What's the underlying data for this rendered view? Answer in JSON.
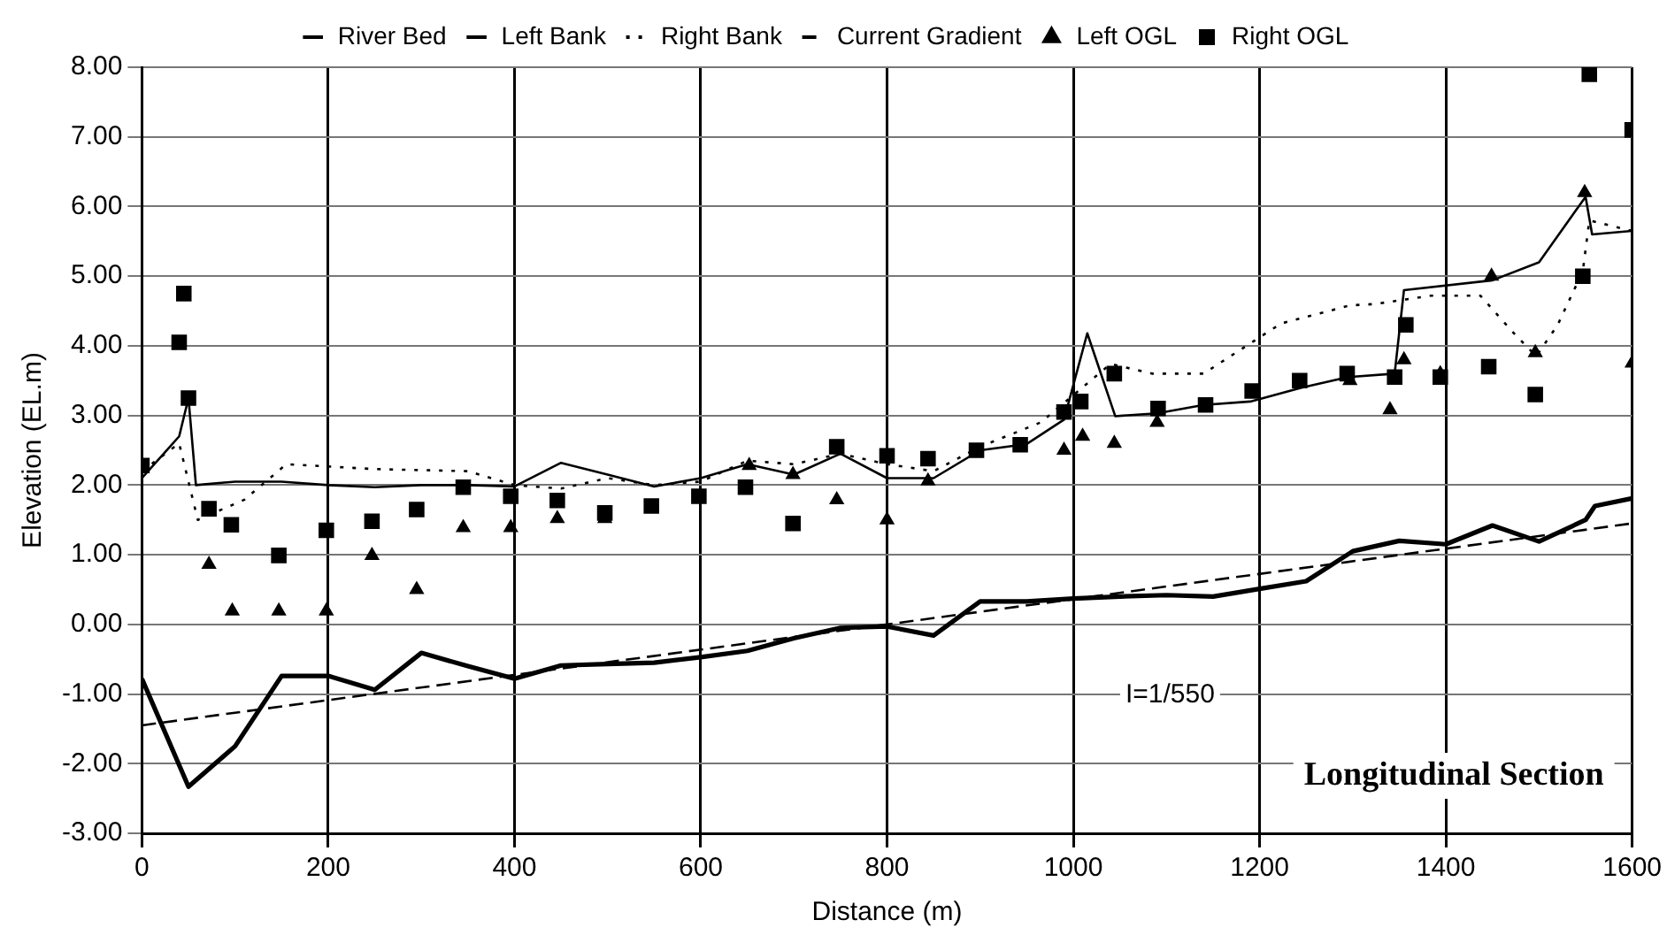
{
  "chart_data": {
    "type": "line",
    "title": "Longitudinal Section",
    "xlabel": "Distance (m)",
    "ylabel": "Elevation (EL.m)",
    "xlim": [
      0,
      1600
    ],
    "xticks": [
      0,
      200,
      400,
      600,
      800,
      1000,
      1200,
      1400,
      1600
    ],
    "ylim": [
      -3,
      8
    ],
    "yticks": [
      {
        "value": -3,
        "label": "-3.00"
      },
      {
        "value": -2,
        "label": "-2.00"
      },
      {
        "value": -1,
        "label": "-1.00"
      },
      {
        "value": 0,
        "label": "0.00"
      },
      {
        "value": 1,
        "label": "1.00"
      },
      {
        "value": 2,
        "label": "2.00"
      },
      {
        "value": 3,
        "label": "3.00"
      },
      {
        "value": 4,
        "label": "4.00"
      },
      {
        "value": 5,
        "label": "5.00"
      },
      {
        "value": 6,
        "label": "6.00"
      },
      {
        "value": 7,
        "label": "7.00"
      },
      {
        "value": 8,
        "label": "8.00"
      }
    ],
    "grid": true,
    "legend": "top",
    "annotations": [
      "I=1/550"
    ],
    "series": [
      {
        "name": "River Bed",
        "type": "line",
        "color": "#000000",
        "line_style": "solid",
        "marker": "none",
        "x": [
          0,
          50,
          100,
          150,
          200,
          250,
          300,
          350,
          400,
          450,
          500,
          550,
          600,
          650,
          700,
          750,
          800,
          850,
          900,
          950,
          1000,
          1050,
          1100,
          1150,
          1200,
          1250,
          1300,
          1350,
          1400,
          1450,
          1500,
          1550,
          1560,
          1600
        ],
        "values": [
          -0.78,
          -2.33,
          -1.75,
          -0.74,
          -0.74,
          -0.94,
          -0.41,
          -0.6,
          -0.78,
          -0.59,
          -0.57,
          -0.55,
          -0.47,
          -0.38,
          -0.2,
          -0.05,
          -0.03,
          -0.16,
          0.33,
          0.33,
          0.37,
          0.4,
          0.42,
          0.4,
          0.51,
          0.62,
          1.05,
          1.2,
          1.15,
          1.42,
          1.19,
          1.5,
          1.7,
          1.81
        ]
      },
      {
        "name": "Left Bank",
        "type": "line",
        "color": "#000000",
        "line_style": "solid",
        "marker": "none",
        "x": [
          0,
          40,
          50,
          58,
          100,
          150,
          200,
          250,
          300,
          350,
          400,
          450,
          500,
          550,
          600,
          650,
          700,
          750,
          800,
          850,
          900,
          950,
          990,
          1015,
          1045,
          1090,
          1140,
          1190,
          1245,
          1295,
          1345,
          1355,
          1450,
          1500,
          1550,
          1557,
          1600
        ],
        "values": [
          2.1,
          2.7,
          3.25,
          2.0,
          2.05,
          2.05,
          2.0,
          1.97,
          2.0,
          2.0,
          1.98,
          2.32,
          2.15,
          1.98,
          2.1,
          2.3,
          2.15,
          2.45,
          2.1,
          2.1,
          2.5,
          2.59,
          2.94,
          4.18,
          2.99,
          3.03,
          3.15,
          3.2,
          3.4,
          3.55,
          3.6,
          4.8,
          4.94,
          5.2,
          6.14,
          5.6,
          5.65
        ]
      },
      {
        "name": "Right Bank",
        "type": "line",
        "color": "#000000",
        "line_style": "dotted",
        "marker": "none",
        "x": [
          0,
          40,
          60,
          110,
          155,
          250,
          350,
          400,
          450,
          500,
          550,
          600,
          650,
          700,
          750,
          800,
          850,
          900,
          965,
          1040,
          1085,
          1140,
          1157,
          1223,
          1297,
          1324,
          1384,
          1437,
          1473,
          1497,
          1520,
          1547,
          1554,
          1600
        ],
        "values": [
          2.2,
          2.6,
          1.5,
          1.79,
          2.3,
          2.23,
          2.2,
          2.0,
          1.95,
          2.1,
          2.0,
          2.05,
          2.35,
          2.3,
          2.45,
          2.3,
          2.2,
          2.55,
          2.9,
          3.74,
          3.6,
          3.6,
          3.75,
          4.32,
          4.58,
          4.6,
          4.72,
          4.72,
          4.18,
          3.85,
          4.3,
          5.07,
          5.8,
          5.65
        ]
      },
      {
        "name": "Current Gradient",
        "type": "line",
        "color": "#000000",
        "line_style": "dashed",
        "marker": "none",
        "x": [
          0,
          1600
        ],
        "values": [
          -1.45,
          1.45
        ]
      },
      {
        "name": "Left OGL",
        "type": "scatter",
        "color": "#000000",
        "marker": "triangle",
        "x": [
          72,
          97,
          147,
          198,
          247,
          295,
          345,
          396,
          446,
          497,
          652,
          699,
          746,
          800,
          844,
          990,
          1010,
          1044,
          1090,
          1297,
          1340,
          1355,
          1394,
          1449,
          1496,
          1549,
          1600
        ],
        "values": [
          0.86,
          0.19,
          0.19,
          0.19,
          0.99,
          0.5,
          1.39,
          1.39,
          1.52,
          1.52,
          2.28,
          2.15,
          1.79,
          1.5,
          2.06,
          2.5,
          2.7,
          2.6,
          2.9,
          3.5,
          3.08,
          3.8,
          3.6,
          5.0,
          3.9,
          6.2,
          3.75
        ]
      },
      {
        "name": "Right OGL",
        "type": "scatter",
        "color": "#000000",
        "marker": "square",
        "x": [
          0,
          40,
          45,
          50,
          72,
          96,
          147,
          198,
          247,
          295,
          345,
          396,
          446,
          497,
          547,
          598,
          648,
          699,
          746,
          800,
          844,
          896,
          943,
          990,
          1008,
          1044,
          1091,
          1142,
          1192,
          1243,
          1294,
          1345,
          1357,
          1394,
          1446,
          1496,
          1547,
          1554,
          1600
        ],
        "values": [
          2.28,
          4.05,
          4.75,
          3.25,
          1.66,
          1.43,
          0.99,
          1.35,
          1.48,
          1.65,
          1.97,
          1.84,
          1.78,
          1.6,
          1.7,
          1.84,
          1.97,
          1.45,
          2.55,
          2.42,
          2.38,
          2.5,
          2.58,
          3.05,
          3.2,
          3.6,
          3.1,
          3.15,
          3.35,
          3.5,
          3.6,
          3.55,
          4.3,
          3.55,
          3.7,
          3.3,
          5.0,
          7.9,
          7.1
        ]
      }
    ]
  }
}
